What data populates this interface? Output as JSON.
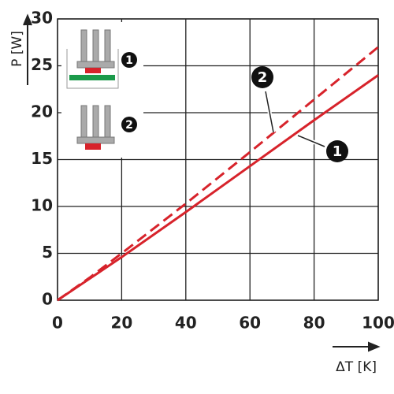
{
  "chart_data": {
    "type": "line",
    "x_label": "ΔT [K]",
    "y_label": "P [W]",
    "x": [
      0,
      10,
      20,
      40,
      60,
      80,
      100
    ],
    "series": [
      {
        "name": "1",
        "color": "#d7232b",
        "dash": false,
        "values": [
          0,
          2.3,
          4.6,
          9.4,
          14.3,
          19.2,
          24.0
        ]
      },
      {
        "name": "2",
        "color": "#d7232b",
        "dash": true,
        "values": [
          0,
          2.4,
          5.0,
          10.3,
          15.8,
          21.4,
          27.0
        ]
      }
    ],
    "xlim": [
      0,
      100
    ],
    "xticks": [
      0,
      20,
      40,
      60,
      80,
      100
    ],
    "ylim": [
      0,
      30
    ],
    "yticks": [
      0,
      5,
      10,
      15,
      20,
      25,
      30
    ],
    "grid": true
  }
}
